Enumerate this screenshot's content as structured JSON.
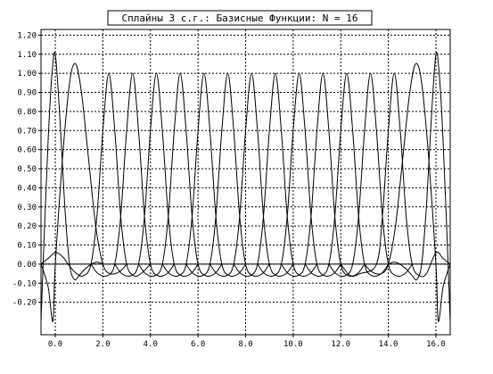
{
  "chart_data": {
    "type": "line",
    "title": "Сплайны 3 с.г.: Базисные Функции: N = 16",
    "xlabel": "",
    "ylabel": "",
    "xlim": [
      -0.6,
      16.6
    ],
    "ylim": [
      -0.37,
      1.23
    ],
    "x_ticks": [
      {
        "value": 0,
        "label": "0.0"
      },
      {
        "value": 2,
        "label": "2.0"
      },
      {
        "value": 4,
        "label": "4.0"
      },
      {
        "value": 6,
        "label": "6.0"
      },
      {
        "value": 8,
        "label": "8.0"
      },
      {
        "value": 10,
        "label": "10.0"
      },
      {
        "value": 12,
        "label": "12.0"
      },
      {
        "value": 14,
        "label": "14.0"
      },
      {
        "value": 16,
        "label": "16.0"
      }
    ],
    "y_ticks": [
      {
        "value": 1.2,
        "label": "1.20"
      },
      {
        "value": 1.1,
        "label": "1.10"
      },
      {
        "value": 1.0,
        "label": "1.00"
      },
      {
        "value": 0.9,
        "label": "0.90"
      },
      {
        "value": 0.8,
        "label": "0.80"
      },
      {
        "value": 0.7,
        "label": "0.70"
      },
      {
        "value": 0.6,
        "label": "0.60"
      },
      {
        "value": 0.5,
        "label": "0.50"
      },
      {
        "value": 0.4,
        "label": "0.40"
      },
      {
        "value": 0.3,
        "label": "0.30"
      },
      {
        "value": 0.2,
        "label": "0.20"
      },
      {
        "value": 0.1,
        "label": "0.10"
      },
      {
        "value": 0.0,
        "label": "0.00"
      },
      {
        "value": -0.1,
        "label": "-0.10"
      },
      {
        "value": -0.2,
        "label": "-0.20"
      }
    ],
    "grid": true,
    "series": [
      {
        "values": [
          [
            -0.6,
            -0.3
          ],
          [
            -0.45,
            0.2
          ],
          [
            -0.3,
            0.65
          ],
          [
            -0.15,
            0.98
          ],
          [
            0,
            1.1
          ],
          [
            0.2,
            0.75
          ],
          [
            0.4,
            0.3
          ],
          [
            0.6,
            0.0
          ],
          [
            0.8,
            -0.08
          ],
          [
            1.0,
            -0.06
          ],
          [
            1.3,
            -0.02
          ],
          [
            1.7,
            0.01
          ],
          [
            2.0,
            0.0
          ]
        ]
      },
      {
        "values": [
          [
            -0.6,
            0.0
          ],
          [
            -0.3,
            -0.12
          ],
          [
            -0.1,
            -0.3
          ],
          [
            0,
            0.0
          ],
          [
            0.3,
            0.55
          ],
          [
            0.6,
            0.95
          ],
          [
            0.85,
            1.05
          ],
          [
            1.1,
            0.9
          ],
          [
            1.4,
            0.55
          ],
          [
            1.7,
            0.2
          ],
          [
            2.0,
            0.0
          ],
          [
            2.3,
            -0.05
          ],
          [
            2.7,
            -0.04
          ],
          [
            3.0,
            0.0
          ]
        ]
      },
      {
        "values": [
          [
            -0.6,
            0.0
          ],
          [
            -0.3,
            0.03
          ],
          [
            0,
            0.06
          ],
          [
            0.3,
            0.04
          ],
          [
            0.6,
            -0.01
          ],
          [
            0.9,
            -0.05
          ],
          [
            1.2,
            -0.06
          ],
          [
            1.5,
            0.0
          ],
          [
            1.75,
            0.25
          ],
          [
            2.0,
            0.7
          ],
          [
            2.25,
            1.0
          ],
          [
            2.5,
            0.7
          ],
          [
            2.75,
            0.25
          ],
          [
            3.0,
            0.0
          ],
          [
            3.3,
            -0.06
          ],
          [
            3.6,
            -0.05
          ],
          [
            4.0,
            0.0
          ]
        ]
      },
      {
        "values": [
          [
            1.5,
            0.0
          ],
          [
            1.8,
            -0.05
          ],
          [
            2.2,
            -0.06
          ],
          [
            2.5,
            0.0
          ],
          [
            2.75,
            0.25
          ],
          [
            3.0,
            0.7
          ],
          [
            3.25,
            1.0
          ],
          [
            3.5,
            0.7
          ],
          [
            3.75,
            0.25
          ],
          [
            4.0,
            0.0
          ],
          [
            4.3,
            -0.06
          ],
          [
            4.7,
            -0.05
          ],
          [
            5.0,
            0.0
          ]
        ]
      },
      {
        "values": [
          [
            2.5,
            0.0
          ],
          [
            2.8,
            -0.05
          ],
          [
            3.2,
            -0.06
          ],
          [
            3.5,
            0.0
          ],
          [
            3.75,
            0.25
          ],
          [
            4.0,
            0.7
          ],
          [
            4.25,
            1.0
          ],
          [
            4.5,
            0.7
          ],
          [
            4.75,
            0.25
          ],
          [
            5.0,
            0.0
          ],
          [
            5.3,
            -0.06
          ],
          [
            5.7,
            -0.05
          ],
          [
            6.0,
            0.0
          ]
        ]
      },
      {
        "values": [
          [
            3.5,
            0.0
          ],
          [
            3.8,
            -0.05
          ],
          [
            4.2,
            -0.06
          ],
          [
            4.5,
            0.0
          ],
          [
            4.75,
            0.25
          ],
          [
            5.0,
            0.7
          ],
          [
            5.25,
            1.0
          ],
          [
            5.5,
            0.7
          ],
          [
            5.75,
            0.25
          ],
          [
            6.0,
            0.0
          ],
          [
            6.3,
            -0.06
          ],
          [
            6.7,
            -0.05
          ],
          [
            7.0,
            0.0
          ]
        ]
      },
      {
        "values": [
          [
            4.5,
            0.0
          ],
          [
            4.8,
            -0.05
          ],
          [
            5.2,
            -0.06
          ],
          [
            5.5,
            0.0
          ],
          [
            5.75,
            0.25
          ],
          [
            6.0,
            0.7
          ],
          [
            6.25,
            1.0
          ],
          [
            6.5,
            0.7
          ],
          [
            6.75,
            0.25
          ],
          [
            7.0,
            0.0
          ],
          [
            7.3,
            -0.06
          ],
          [
            7.7,
            -0.05
          ],
          [
            8.0,
            0.0
          ]
        ]
      },
      {
        "values": [
          [
            5.5,
            0.0
          ],
          [
            5.8,
            -0.05
          ],
          [
            6.2,
            -0.06
          ],
          [
            6.5,
            0.0
          ],
          [
            6.75,
            0.25
          ],
          [
            7.0,
            0.7
          ],
          [
            7.25,
            1.0
          ],
          [
            7.5,
            0.7
          ],
          [
            7.75,
            0.25
          ],
          [
            8.0,
            0.0
          ],
          [
            8.3,
            -0.06
          ],
          [
            8.7,
            -0.05
          ],
          [
            9.0,
            0.0
          ]
        ]
      },
      {
        "values": [
          [
            6.5,
            0.0
          ],
          [
            6.8,
            -0.05
          ],
          [
            7.2,
            -0.06
          ],
          [
            7.5,
            0.0
          ],
          [
            7.75,
            0.25
          ],
          [
            8.0,
            0.7
          ],
          [
            8.25,
            1.0
          ],
          [
            8.5,
            0.7
          ],
          [
            8.75,
            0.25
          ],
          [
            9.0,
            0.0
          ],
          [
            9.3,
            -0.06
          ],
          [
            9.7,
            -0.05
          ],
          [
            10.0,
            0.0
          ]
        ]
      },
      {
        "values": [
          [
            7.5,
            0.0
          ],
          [
            7.8,
            -0.05
          ],
          [
            8.2,
            -0.06
          ],
          [
            8.5,
            0.0
          ],
          [
            8.75,
            0.25
          ],
          [
            9.0,
            0.7
          ],
          [
            9.25,
            1.0
          ],
          [
            9.5,
            0.7
          ],
          [
            9.75,
            0.25
          ],
          [
            10.0,
            0.0
          ],
          [
            10.3,
            -0.06
          ],
          [
            10.7,
            -0.05
          ],
          [
            11.0,
            0.0
          ]
        ]
      },
      {
        "values": [
          [
            8.5,
            0.0
          ],
          [
            8.8,
            -0.05
          ],
          [
            9.2,
            -0.06
          ],
          [
            9.5,
            0.0
          ],
          [
            9.75,
            0.25
          ],
          [
            10.0,
            0.7
          ],
          [
            10.25,
            1.0
          ],
          [
            10.5,
            0.7
          ],
          [
            10.75,
            0.25
          ],
          [
            11.0,
            0.0
          ],
          [
            11.3,
            -0.06
          ],
          [
            11.7,
            -0.05
          ],
          [
            12.0,
            0.0
          ]
        ]
      },
      {
        "values": [
          [
            9.5,
            0.0
          ],
          [
            9.8,
            -0.05
          ],
          [
            10.2,
            -0.06
          ],
          [
            10.5,
            0.0
          ],
          [
            10.75,
            0.25
          ],
          [
            11.0,
            0.7
          ],
          [
            11.25,
            1.0
          ],
          [
            11.5,
            0.7
          ],
          [
            11.75,
            0.25
          ],
          [
            12.0,
            0.0
          ],
          [
            12.3,
            -0.06
          ],
          [
            12.7,
            -0.05
          ],
          [
            13.0,
            0.0
          ]
        ]
      },
      {
        "values": [
          [
            10.5,
            0.0
          ],
          [
            10.8,
            -0.05
          ],
          [
            11.2,
            -0.06
          ],
          [
            11.5,
            0.0
          ],
          [
            11.75,
            0.25
          ],
          [
            12.0,
            0.7
          ],
          [
            12.25,
            1.0
          ],
          [
            12.5,
            0.7
          ],
          [
            12.75,
            0.25
          ],
          [
            13.0,
            0.0
          ],
          [
            13.3,
            -0.06
          ],
          [
            13.7,
            -0.05
          ],
          [
            14.0,
            0.0
          ]
        ]
      },
      {
        "values": [
          [
            11.5,
            0.0
          ],
          [
            11.8,
            -0.05
          ],
          [
            12.2,
            -0.06
          ],
          [
            12.5,
            0.0
          ],
          [
            12.75,
            0.25
          ],
          [
            13.0,
            0.7
          ],
          [
            13.25,
            1.0
          ],
          [
            13.5,
            0.7
          ],
          [
            13.75,
            0.25
          ],
          [
            14.0,
            0.0
          ],
          [
            14.3,
            -0.06
          ],
          [
            14.7,
            -0.05
          ],
          [
            15.0,
            0.0
          ]
        ]
      },
      {
        "values": [
          [
            12.0,
            0.0
          ],
          [
            12.4,
            -0.06
          ],
          [
            12.8,
            -0.05
          ],
          [
            13.5,
            0.0
          ],
          [
            13.75,
            0.25
          ],
          [
            14.0,
            0.7
          ],
          [
            14.25,
            1.0
          ],
          [
            14.5,
            0.7
          ],
          [
            14.75,
            0.25
          ],
          [
            15.0,
            0.0
          ],
          [
            15.3,
            -0.06
          ],
          [
            15.6,
            -0.05
          ],
          [
            16.0,
            0.06
          ],
          [
            16.3,
            0.03
          ],
          [
            16.6,
            0.0
          ]
        ]
      },
      {
        "values": [
          [
            13.0,
            0.0
          ],
          [
            13.3,
            -0.04
          ],
          [
            13.7,
            -0.05
          ],
          [
            14.0,
            0.0
          ],
          [
            14.3,
            0.2
          ],
          [
            14.6,
            0.55
          ],
          [
            14.9,
            0.9
          ],
          [
            15.15,
            1.05
          ],
          [
            15.4,
            0.95
          ],
          [
            15.7,
            0.55
          ],
          [
            16.0,
            0.0
          ],
          [
            16.1,
            -0.3
          ],
          [
            16.3,
            -0.12
          ],
          [
            16.6,
            0.0
          ]
        ]
      },
      {
        "values": [
          [
            14.0,
            0.0
          ],
          [
            14.3,
            0.01
          ],
          [
            14.7,
            -0.02
          ],
          [
            15.0,
            -0.06
          ],
          [
            15.2,
            -0.08
          ],
          [
            15.4,
            0.0
          ],
          [
            15.6,
            0.3
          ],
          [
            15.8,
            0.75
          ],
          [
            16.0,
            1.1
          ],
          [
            16.15,
            0.98
          ],
          [
            16.3,
            0.65
          ],
          [
            16.45,
            0.2
          ],
          [
            16.6,
            -0.3
          ]
        ]
      }
    ]
  }
}
